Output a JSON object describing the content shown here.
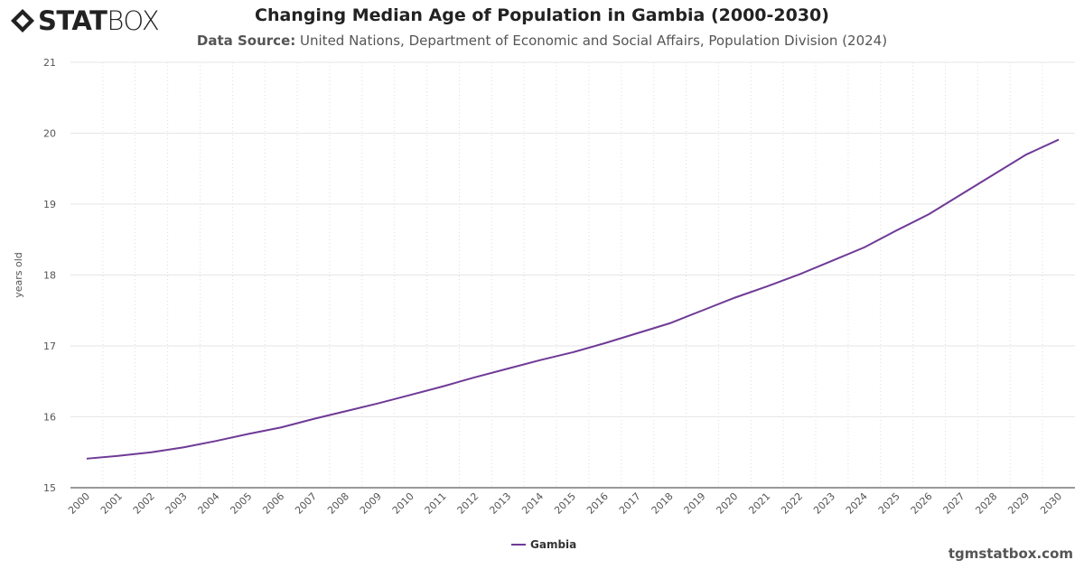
{
  "logo": {
    "text_bold": "STAT",
    "text_light": "BOX"
  },
  "header": {
    "title": "Changing Median Age of Population in Gambia (2000-2030)",
    "source_label": "Data Source:",
    "source_text": "United Nations, Department of Economic and Social Affairs, Population Division (2024)"
  },
  "credit": "tgmstatbox.com",
  "chart_data": {
    "type": "line",
    "title": "Changing Median Age of Population in Gambia (2000-2030)",
    "xlabel": "",
    "ylabel": "years old",
    "ylim": [
      15,
      21
    ],
    "yticks": [
      "15",
      "16",
      "17",
      "18",
      "19",
      "20",
      "21"
    ],
    "categories": [
      "2000",
      "2001",
      "2002",
      "2003",
      "2004",
      "2005",
      "2006",
      "2007",
      "2008",
      "2009",
      "2010",
      "2011",
      "2012",
      "2013",
      "2014",
      "2015",
      "2016",
      "2017",
      "2018",
      "2019",
      "2020",
      "2021",
      "2022",
      "2023",
      "2024",
      "2025",
      "2026",
      "2027",
      "2028",
      "2029",
      "2030"
    ],
    "series": [
      {
        "name": "Gambia",
        "color": "#6f3a96",
        "values": [
          15.41,
          15.45,
          15.5,
          15.57,
          15.66,
          15.76,
          15.85,
          15.97,
          16.08,
          16.19,
          16.31,
          16.43,
          16.56,
          16.68,
          16.8,
          16.91,
          17.04,
          17.18,
          17.32,
          17.5,
          17.68,
          17.84,
          18.01,
          18.2,
          18.39,
          18.63,
          18.86,
          19.14,
          19.42,
          19.7,
          19.91
        ]
      }
    ],
    "grid": true,
    "legend": "bottom-center"
  }
}
